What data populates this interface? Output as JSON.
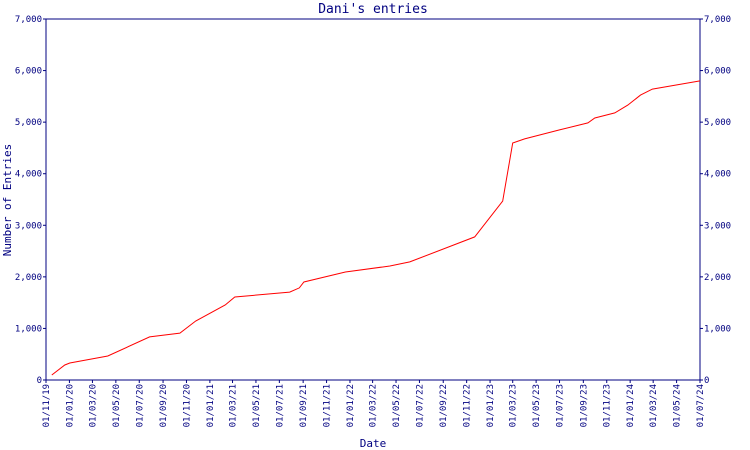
{
  "chart_data": {
    "type": "line",
    "title": "Dani's entries",
    "xlabel": "Date",
    "ylabel": "Number of Entries",
    "x": [
      "2019-11-16",
      "2019-12-20",
      "2020-01-02",
      "2020-04-10",
      "2020-07-28",
      "2020-10-15",
      "2020-11-25",
      "2021-02-10",
      "2021-03-07",
      "2021-07-28",
      "2021-08-22",
      "2021-09-03",
      "2021-12-20",
      "2022-04-15",
      "2022-06-06",
      "2022-11-22",
      "2023-02-03",
      "2023-03-01",
      "2023-04-01",
      "2023-07-01",
      "2023-09-13",
      "2023-10-01",
      "2023-11-22",
      "2023-12-26",
      "2024-01-28",
      "2024-02-28",
      "2024-07-01"
    ],
    "series": [
      {
        "name": "Entries",
        "color": "#ff0000",
        "values": [
          97,
          290,
          330,
          465,
          835,
          910,
          1145,
          1455,
          1610,
          1705,
          1785,
          1900,
          2095,
          2210,
          2290,
          2775,
          3470,
          4595,
          4675,
          4850,
          4985,
          5080,
          5180,
          5330,
          5525,
          5640,
          5800
        ]
      }
    ],
    "xlim": [
      "2019-11-01",
      "2024-07-01"
    ],
    "xticks": [
      {
        "value": "2019-11-01",
        "label": "01/11/19"
      },
      {
        "value": "2020-01-01",
        "label": "01/01/20"
      },
      {
        "value": "2020-03-01",
        "label": "01/03/20"
      },
      {
        "value": "2020-05-01",
        "label": "01/05/20"
      },
      {
        "value": "2020-07-01",
        "label": "01/07/20"
      },
      {
        "value": "2020-09-01",
        "label": "01/09/20"
      },
      {
        "value": "2020-11-01",
        "label": "01/11/20"
      },
      {
        "value": "2021-01-01",
        "label": "01/01/21"
      },
      {
        "value": "2021-03-01",
        "label": "01/03/21"
      },
      {
        "value": "2021-05-01",
        "label": "01/05/21"
      },
      {
        "value": "2021-07-01",
        "label": "01/07/21"
      },
      {
        "value": "2021-09-01",
        "label": "01/09/21"
      },
      {
        "value": "2021-11-01",
        "label": "01/11/21"
      },
      {
        "value": "2022-01-01",
        "label": "01/01/22"
      },
      {
        "value": "2022-03-01",
        "label": "01/03/22"
      },
      {
        "value": "2022-05-01",
        "label": "01/05/22"
      },
      {
        "value": "2022-07-01",
        "label": "01/07/22"
      },
      {
        "value": "2022-09-01",
        "label": "01/09/22"
      },
      {
        "value": "2022-11-01",
        "label": "01/11/22"
      },
      {
        "value": "2023-01-01",
        "label": "01/01/23"
      },
      {
        "value": "2023-03-01",
        "label": "01/03/23"
      },
      {
        "value": "2023-05-01",
        "label": "01/05/23"
      },
      {
        "value": "2023-07-01",
        "label": "01/07/23"
      },
      {
        "value": "2023-09-01",
        "label": "01/09/23"
      },
      {
        "value": "2023-11-01",
        "label": "01/11/23"
      },
      {
        "value": "2024-01-01",
        "label": "01/01/24"
      },
      {
        "value": "2024-03-01",
        "label": "01/03/24"
      },
      {
        "value": "2024-05-01",
        "label": "01/05/24"
      },
      {
        "value": "2024-07-01",
        "label": "01/07/24"
      }
    ],
    "ylim": [
      0,
      7000
    ],
    "yticks": [
      0,
      {
        "value": 1000,
        "label": "1,000"
      },
      {
        "value": 2000,
        "label": "2,000"
      },
      {
        "value": 3000,
        "label": "3,000"
      },
      {
        "value": 4000,
        "label": "4,000"
      },
      {
        "value": 5000,
        "label": "5,000"
      },
      {
        "value": 6000,
        "label": "6,000"
      },
      {
        "value": 7000,
        "label": "7,000"
      }
    ],
    "y2lim": [
      0,
      7000
    ],
    "y2ticks": [
      0,
      {
        "value": 1000,
        "label": "1,000"
      },
      {
        "value": 2000,
        "label": "2,000"
      },
      {
        "value": 3000,
        "label": "3,000"
      },
      {
        "value": 4000,
        "label": "4,000"
      },
      {
        "value": 5000,
        "label": "5,000"
      },
      {
        "value": 6000,
        "label": "6,000"
      },
      {
        "value": 7000,
        "label": "7,000"
      }
    ],
    "axis_color": "#000080"
  }
}
